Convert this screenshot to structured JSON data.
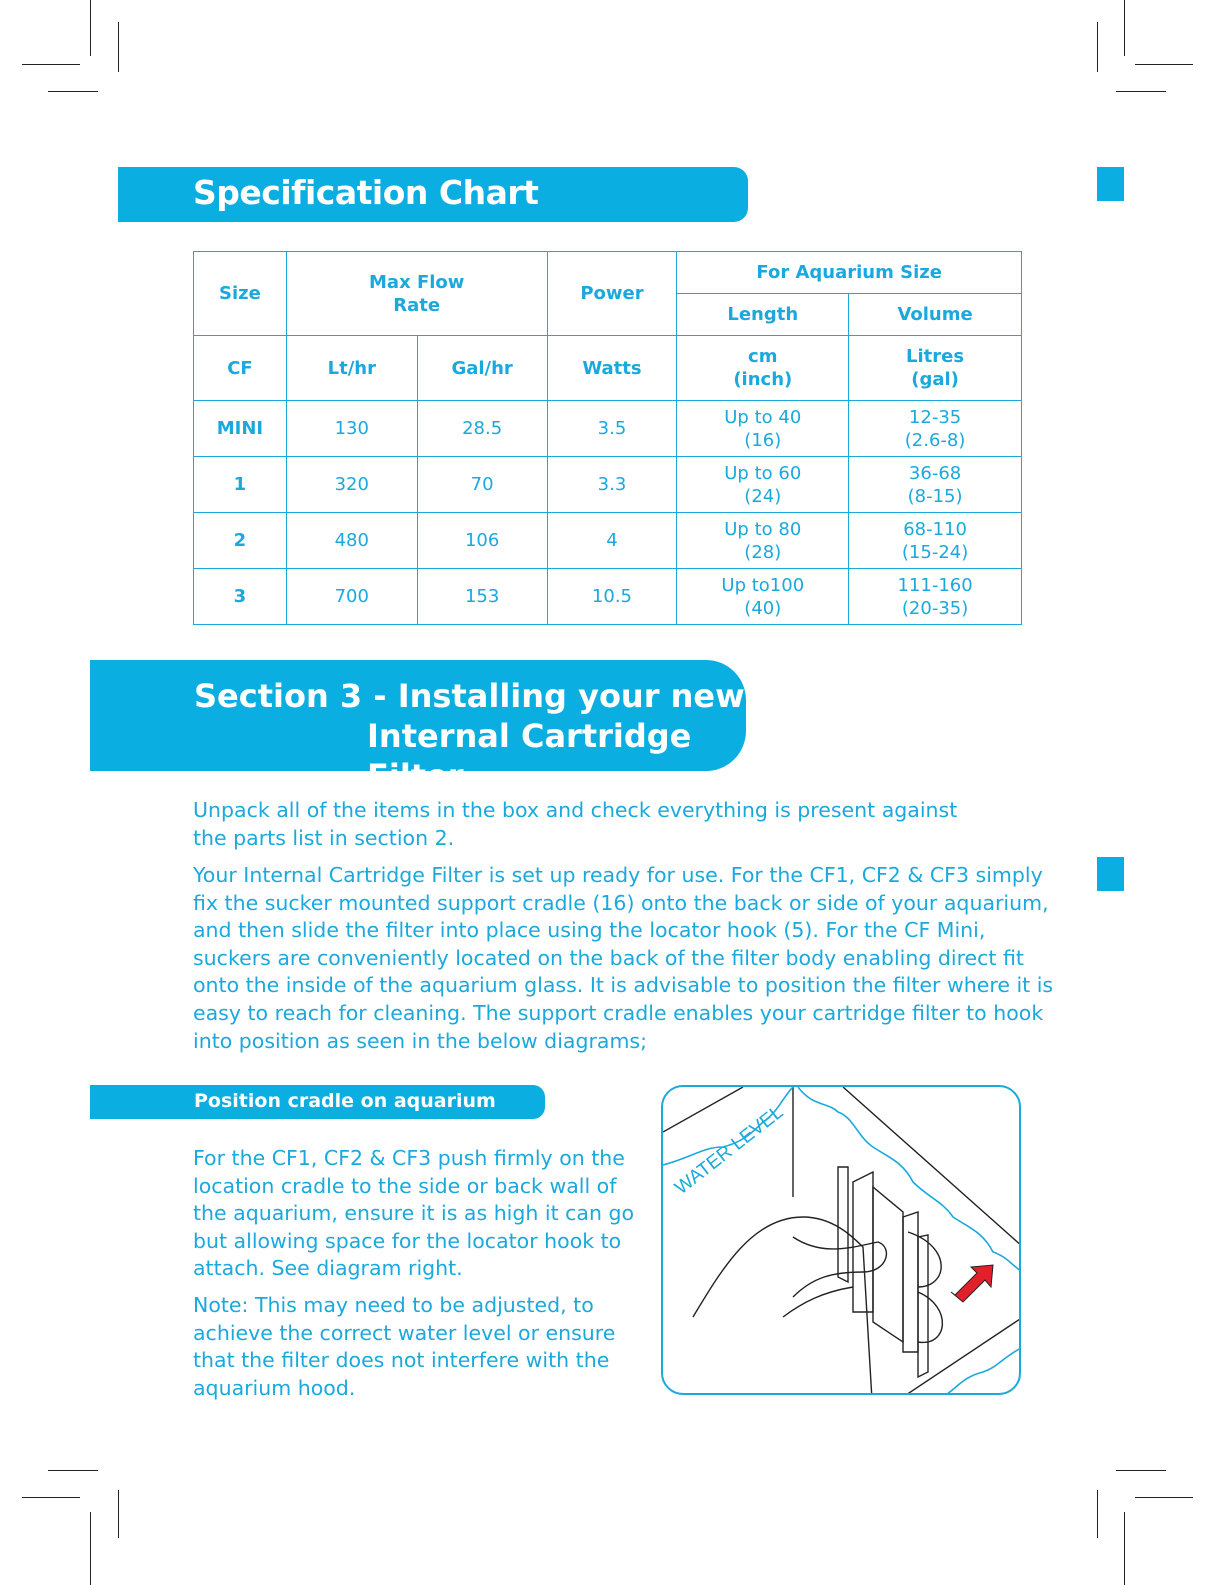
{
  "spec_chart": {
    "title": "Specification Chart",
    "header": {
      "size": "Size",
      "max_flow": "Max Flow",
      "rate": "Rate",
      "power": "Power",
      "aquarium_size": "For Aquarium Size",
      "length": "Length",
      "volume": "Volume"
    },
    "units": {
      "cf": "CF",
      "lthr": "Lt/hr",
      "galhr": "Gal/hr",
      "watts": "Watts",
      "cm": "cm",
      "inch": "(inch)",
      "litres": "Litres",
      "gal": "(gal)"
    },
    "rows": [
      {
        "size": "MINI",
        "lthr": "130",
        "galhr": "28.5",
        "watts": "3.5",
        "len1": "Up to 40",
        "len2": "(16)",
        "vol1": "12-35",
        "vol2": "(2.6-8)"
      },
      {
        "size": "1",
        "lthr": "320",
        "galhr": "70",
        "watts": "3.3",
        "len1": "Up to 60",
        "len2": "(24)",
        "vol1": "36-68",
        "vol2": "(8-15)"
      },
      {
        "size": "2",
        "lthr": "480",
        "galhr": "106",
        "watts": "4",
        "len1": "Up to 80",
        "len2": "(28)",
        "vol1": "68-110",
        "vol2": "(15-24)"
      },
      {
        "size": "3",
        "lthr": "700",
        "galhr": "153",
        "watts": "10.5",
        "len1": "Up to100",
        "len2": "(40)",
        "vol1": "111-160",
        "vol2": "(20-35)"
      }
    ]
  },
  "section3": {
    "title_line1": "Section 3 - Installing your new",
    "title_line2": "Internal Cartridge Filter",
    "para1": [
      "Unpack all of the items in the box and check everything is present against",
      "the parts list in section 2."
    ],
    "para2": [
      "Your Internal Cartridge Filter is set up ready for use. For the CF1, CF2 & CF3 simply",
      "fix the sucker mounted support cradle (16) onto the back or side of your aquarium,",
      "and then slide the filter into place using the locator hook (5). For the CF Mini,",
      "suckers are conveniently located on the back of the filter body enabling direct fit",
      "onto the inside of the aquarium glass. It is advisable to position the filter where it is",
      "easy to reach for cleaning. The support cradle enables your cartridge filter to hook",
      "into position as seen in the below diagrams;"
    ]
  },
  "cradle": {
    "title": "Position cradle on aquarium",
    "para1": [
      "For the CF1, CF2 & CF3 push firmly on the",
      "location cradle to the side or back wall of",
      "the aquarium, ensure it is as high it can go",
      "but allowing space for the locator hook to",
      "attach. See diagram right."
    ],
    "para2": [
      "Note: This may need to be adjusted, to",
      "achieve the correct water level or ensure",
      "that the filter does not interfere with the",
      "aquarium hood."
    ],
    "illustration_label": "WATER LEVEL"
  },
  "colors": {
    "brand_blue": "#0aaee0",
    "arrow_red": "#e3202a"
  }
}
